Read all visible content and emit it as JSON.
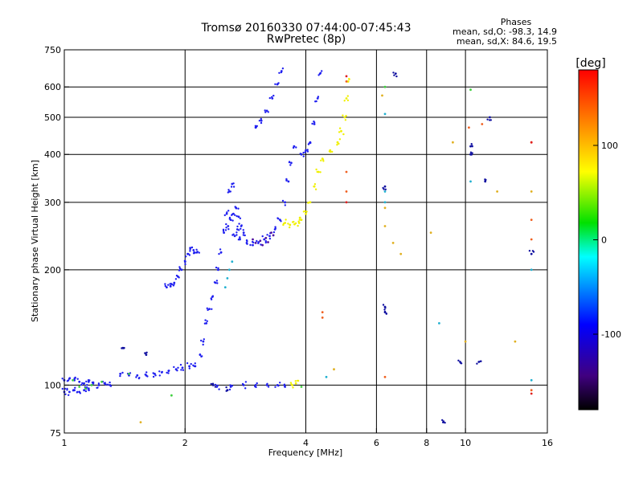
{
  "chart_data": {
    "type": "scatter",
    "title_line1": "Tromsø 20160330 07:44:00-07:45:43",
    "title_line2": "RwPretec (8p)",
    "phases": {
      "heading": "Phases",
      "line_o": "mean, sd,O: -98.3, 14.9",
      "line_x": "mean, sd,X:  84.6, 19.5"
    },
    "xlabel": "Frequency [MHz]",
    "ylabel": "Stationary phase Virtual Height [km]",
    "x_scale": "log",
    "y_scale": "log",
    "xlim": [
      1,
      16
    ],
    "ylim": [
      75,
      750
    ],
    "x_ticks": [
      {
        "v": 1,
        "label": "1"
      },
      {
        "v": 2,
        "label": "2"
      },
      {
        "v": 4,
        "label": "4"
      },
      {
        "v": 6,
        "label": "6"
      },
      {
        "v": 8,
        "label": "8"
      },
      {
        "v": 10,
        "label": "10"
      },
      {
        "v": 16,
        "label": "16"
      }
    ],
    "x_grid": [
      2,
      4,
      6,
      8,
      10
    ],
    "y_ticks": [
      {
        "v": 75,
        "label": "75"
      },
      {
        "v": 100,
        "label": "100"
      },
      {
        "v": 200,
        "label": "200"
      },
      {
        "v": 300,
        "label": "300"
      },
      {
        "v": 400,
        "label": "400"
      },
      {
        "v": 500,
        "label": "500"
      },
      {
        "v": 600,
        "label": "600"
      },
      {
        "v": 750,
        "label": "750"
      }
    ],
    "y_grid": [
      100,
      200,
      300,
      400,
      500,
      600
    ],
    "colorbar": {
      "label": "[deg]",
      "range": [
        -180,
        180
      ],
      "ticks": [
        {
          "v": 100,
          "label": "100"
        },
        {
          "v": 0,
          "label": "0"
        },
        {
          "v": -100,
          "label": "-100"
        }
      ]
    },
    "series": [
      {
        "phase_deg": -100,
        "color": "#2020f0",
        "points": [
          [
            1.0,
            103
          ],
          [
            1.03,
            104
          ],
          [
            1.06,
            103
          ],
          [
            1.09,
            102
          ],
          [
            1.12,
            101
          ],
          [
            1.15,
            102
          ],
          [
            1.18,
            101
          ],
          [
            1.22,
            100
          ],
          [
            1.26,
            101
          ],
          [
            1.3,
            100
          ],
          [
            1.38,
            107
          ],
          [
            1.45,
            106
          ],
          [
            1.52,
            106
          ],
          [
            1.6,
            106
          ],
          [
            1.68,
            107
          ],
          [
            1.75,
            108
          ],
          [
            1.82,
            109
          ],
          [
            1.9,
            110
          ],
          [
            1.97,
            111
          ],
          [
            2.05,
            112
          ],
          [
            2.12,
            112
          ],
          [
            1.8,
            180
          ],
          [
            1.84,
            181
          ],
          [
            1.88,
            185
          ],
          [
            1.92,
            192
          ],
          [
            1.96,
            200
          ],
          [
            2.0,
            210
          ],
          [
            2.03,
            220
          ],
          [
            2.06,
            228
          ],
          [
            2.1,
            225
          ],
          [
            2.14,
            222
          ],
          [
            2.18,
            120
          ],
          [
            2.22,
            130
          ],
          [
            2.26,
            145
          ],
          [
            2.3,
            158
          ],
          [
            2.34,
            170
          ],
          [
            2.38,
            185
          ],
          [
            2.42,
            200
          ],
          [
            2.46,
            222
          ],
          [
            2.5,
            250
          ],
          [
            2.54,
            280
          ],
          [
            2.58,
            320
          ],
          [
            2.62,
            335
          ],
          [
            2.56,
            260
          ],
          [
            2.6,
            270
          ],
          [
            2.64,
            280
          ],
          [
            2.68,
            290
          ],
          [
            2.72,
            275
          ],
          [
            2.76,
            260
          ],
          [
            2.8,
            250
          ],
          [
            2.66,
            245
          ],
          [
            2.7,
            255
          ],
          [
            2.74,
            240
          ],
          [
            2.85,
            235
          ],
          [
            2.95,
            232
          ],
          [
            3.05,
            236
          ],
          [
            3.15,
            240
          ],
          [
            3.25,
            245
          ],
          [
            3.35,
            255
          ],
          [
            3.45,
            270
          ],
          [
            3.55,
            300
          ],
          [
            3.62,
            340
          ],
          [
            3.68,
            380
          ],
          [
            3.74,
            420
          ],
          [
            3.0,
            470
          ],
          [
            3.1,
            490
          ],
          [
            3.2,
            520
          ],
          [
            3.3,
            560
          ],
          [
            3.4,
            610
          ],
          [
            3.48,
            660
          ],
          [
            3.9,
            400
          ],
          [
            4.0,
            410
          ],
          [
            4.1,
            430
          ],
          [
            4.2,
            480
          ],
          [
            4.28,
            560
          ],
          [
            4.34,
            650
          ],
          [
            1.0,
            96
          ],
          [
            1.03,
            96
          ],
          [
            1.06,
            97
          ],
          [
            1.09,
            96
          ],
          [
            1.12,
            97
          ],
          [
            1.15,
            98
          ],
          [
            2.4,
            99
          ],
          [
            2.6,
            99
          ],
          [
            2.8,
            100
          ],
          [
            3.0,
            100
          ],
          [
            3.2,
            100
          ],
          [
            3.4,
            100
          ],
          [
            3.55,
            99
          ]
        ]
      },
      {
        "phase_deg": -125,
        "color": "#5010a0",
        "points": [
          [
            2.95,
            240
          ],
          [
            3.0,
            235
          ],
          [
            3.08,
            238
          ],
          [
            3.12,
            232
          ],
          [
            3.18,
            242
          ],
          [
            3.22,
            236
          ],
          [
            3.28,
            250
          ],
          [
            3.32,
            246
          ]
        ]
      },
      {
        "phase_deg": 100,
        "color": "#f0f000",
        "points": [
          [
            3.9,
            270
          ],
          [
            4.0,
            280
          ],
          [
            4.1,
            300
          ],
          [
            4.2,
            330
          ],
          [
            4.3,
            360
          ],
          [
            4.4,
            390
          ],
          [
            4.6,
            410
          ],
          [
            4.8,
            430
          ],
          [
            4.9,
            460
          ],
          [
            5.0,
            500
          ],
          [
            5.05,
            560
          ],
          [
            5.1,
            620
          ],
          [
            3.55,
            265
          ],
          [
            3.65,
            262
          ],
          [
            3.75,
            263
          ],
          [
            3.85,
            265
          ],
          [
            3.7,
            100
          ],
          [
            3.78,
            101
          ]
        ]
      },
      {
        "phase_deg": 40,
        "color": "#40d040",
        "points": [
          [
            1.05,
            103
          ],
          [
            1.09,
            99
          ],
          [
            1.13,
            98
          ],
          [
            1.17,
            100
          ],
          [
            1.24,
            102
          ],
          [
            1.45,
            107
          ],
          [
            1.85,
            94
          ],
          [
            3.9,
            99
          ],
          [
            6.3,
            600
          ],
          [
            10.3,
            590
          ]
        ]
      },
      {
        "phase_deg": -60,
        "color": "#20b0d0",
        "points": [
          [
            2.52,
            180
          ],
          [
            2.55,
            190
          ],
          [
            2.58,
            200
          ],
          [
            2.62,
            210
          ],
          [
            4.5,
            105
          ],
          [
            6.3,
            510
          ],
          [
            6.3,
            320
          ],
          [
            6.3,
            300
          ],
          [
            8.6,
            145
          ],
          [
            10.3,
            340
          ],
          [
            14.6,
            200
          ],
          [
            14.6,
            103
          ]
        ]
      },
      {
        "phase_deg": 150,
        "color": "#f06020",
        "points": [
          [
            4.4,
            155
          ],
          [
            4.4,
            150
          ],
          [
            5.05,
            620
          ],
          [
            5.05,
            360
          ],
          [
            5.05,
            320
          ],
          [
            6.3,
            105
          ],
          [
            10.2,
            470
          ],
          [
            11.0,
            480
          ],
          [
            14.6,
            270
          ],
          [
            14.6,
            240
          ],
          [
            14.6,
            430
          ],
          [
            14.6,
            97
          ]
        ]
      },
      {
        "phase_deg": 160,
        "color": "#e02020",
        "points": [
          [
            5.05,
            640
          ],
          [
            5.05,
            300
          ],
          [
            14.6,
            430
          ],
          [
            14.6,
            95
          ]
        ]
      },
      {
        "phase_deg": 120,
        "color": "#e0b020",
        "points": [
          [
            6.2,
            570
          ],
          [
            6.3,
            290
          ],
          [
            6.3,
            260
          ],
          [
            6.6,
            235
          ],
          [
            6.9,
            220
          ],
          [
            8.2,
            250
          ],
          [
            9.3,
            430
          ],
          [
            10.0,
            130
          ],
          [
            12.0,
            320
          ],
          [
            13.3,
            130
          ],
          [
            14.6,
            320
          ],
          [
            1.55,
            80
          ],
          [
            4.7,
            110
          ]
        ]
      },
      {
        "phase_deg": -90,
        "color": "#1010a0",
        "points": [
          [
            6.3,
            160
          ],
          [
            6.3,
            155
          ],
          [
            6.3,
            330
          ],
          [
            6.7,
            650
          ],
          [
            8.8,
            80
          ],
          [
            9.7,
            115
          ],
          [
            10.3,
            420
          ],
          [
            10.3,
            400
          ],
          [
            10.8,
            115
          ],
          [
            11.2,
            340
          ],
          [
            11.5,
            500
          ],
          [
            14.6,
            220
          ],
          [
            2.35,
            100
          ],
          [
            2.55,
            97
          ],
          [
            1.4,
            125
          ],
          [
            1.6,
            120
          ]
        ]
      }
    ]
  }
}
